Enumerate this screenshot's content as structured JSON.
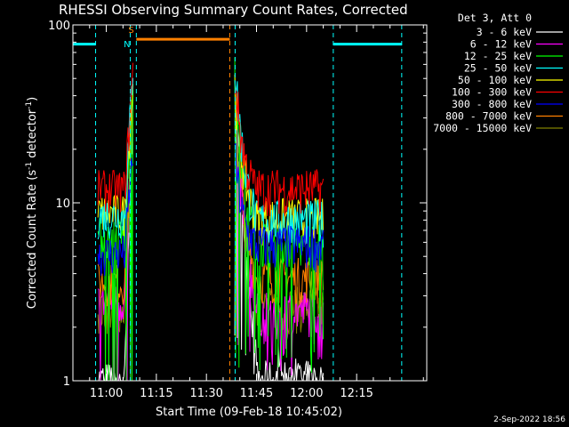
{
  "chart_data": {
    "type": "line",
    "title": "RHESSI Observing Summary Count Rates, Corrected",
    "xlabel": "Start Time (09-Feb-18 10:45:02)",
    "ylabel_main": "Corrected Count Rate (s",
    "ylabel_sup1": "-1",
    "ylabel_mid": " detector",
    "ylabel_sup2": "-1",
    "ylabel_end": ")",
    "yscale": "log",
    "ylim": [
      1,
      100
    ],
    "xlim_minutes_label_start": "10:45",
    "x_tick_labels": [
      "11:00",
      "11:15",
      "11:30",
      "11:45",
      "12:00",
      "12:15"
    ],
    "y_tick_labels": [
      "1",
      "10",
      "100"
    ],
    "legend_header": "Det 3, Att 0",
    "legend_position": "top-right",
    "grid": false,
    "series": [
      {
        "name": "3 - 6 keV",
        "color": "#ffffff"
      },
      {
        "name": "6 - 12 keV",
        "color": "#ff00ff"
      },
      {
        "name": "12 - 25 keV",
        "color": "#00ff00"
      },
      {
        "name": "25 - 50 keV",
        "color": "#00ffff"
      },
      {
        "name": "50 - 100 keV",
        "color": "#ffff00"
      },
      {
        "name": "100 - 300 keV",
        "color": "#ff0000"
      },
      {
        "name": "300 - 800 keV",
        "color": "#0000ff"
      },
      {
        "name": "800 - 7000 keV",
        "color": "#ff8000"
      },
      {
        "name": "7000 - 15000 keV",
        "color": "#808000"
      }
    ],
    "annotations": {
      "saa_marker": "S",
      "night_marker": "N",
      "attenuator_bars_color": "#00ffff",
      "saa_bar_color": "#ff8000"
    }
  },
  "footer_date": "2-Sep-2022 18:56"
}
